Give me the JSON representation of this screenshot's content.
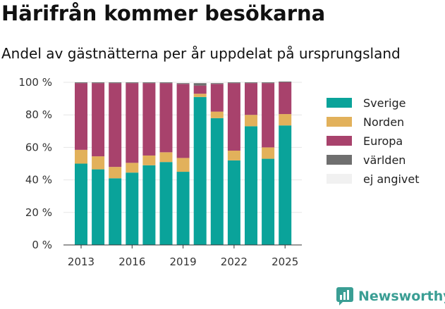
{
  "title": "Härifrån kommer besökarna",
  "subtitle": "Andel av gästnätterna per år uppdelat på ursprungsland",
  "brand": {
    "name": "Newsworthy",
    "icon": "chart-bubble-icon"
  },
  "colors": {
    "Sverige": "#0aa39a",
    "Norden": "#e2b15b",
    "Europa": "#a8426c",
    "världen": "#6f6f6f",
    "ej angivet": "#f1f1f1"
  },
  "chart_data": {
    "type": "bar",
    "stacked": true,
    "x": [
      2013,
      2014,
      2015,
      2016,
      2017,
      2018,
      2019,
      2020,
      2021,
      2022,
      2023,
      2024,
      2025
    ],
    "x_ticks": [
      "2013",
      "2016",
      "2019",
      "2022",
      "2025"
    ],
    "y_ticks": [
      "0 %",
      "20 %",
      "40 %",
      "60 %",
      "80 %",
      "100 %"
    ],
    "ylim": [
      0,
      100
    ],
    "grid": true,
    "legend_position": "right",
    "series": [
      {
        "name": "Sverige",
        "values": [
          50,
          46.5,
          41,
          44.5,
          49,
          51,
          45,
          91,
          78,
          52,
          73,
          53,
          73.5
        ]
      },
      {
        "name": "Norden",
        "values": [
          8.5,
          8,
          7,
          6,
          6,
          6,
          8.5,
          2,
          4,
          6,
          7,
          7,
          7
        ]
      },
      {
        "name": "Europa",
        "values": [
          41,
          45,
          51.5,
          49,
          44.5,
          42.5,
          45.5,
          5,
          17,
          41.5,
          19.5,
          39.5,
          19.5
        ]
      },
      {
        "name": "världen",
        "values": [
          0.5,
          0.5,
          0.5,
          0.5,
          0.5,
          0.5,
          0.5,
          1.5,
          0.5,
          0.5,
          0.5,
          0.5,
          0.5
        ]
      },
      {
        "name": "ej angivet",
        "values": [
          0,
          0,
          0,
          0,
          0,
          0,
          0,
          0,
          0,
          0,
          0,
          0,
          0
        ]
      }
    ]
  }
}
